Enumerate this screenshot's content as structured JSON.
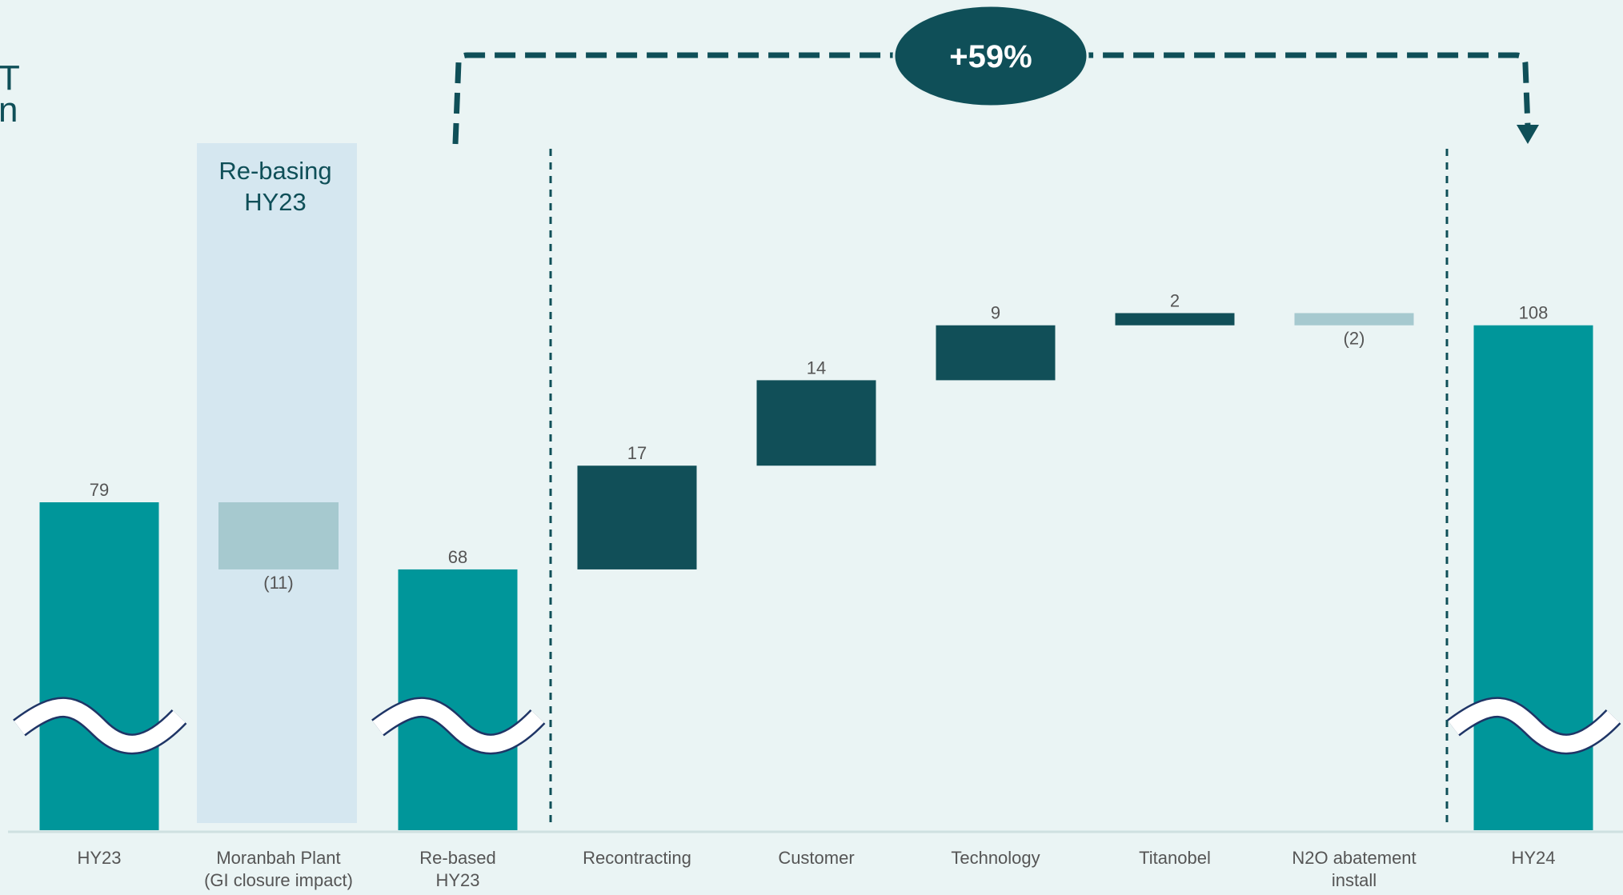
{
  "colors": {
    "background": "#eaf4f4",
    "total_bar": "#00969a",
    "increase_bar": "#114f58",
    "decrease_bar": "#a6c9cf",
    "rebasing_panel": "#d5e7f0",
    "dark_teal": "#0f4f58",
    "label_text": "#555555",
    "category_text": "#555555",
    "axis_break_outline": "#1f3566"
  },
  "side_heading_fragment": [
    "T",
    "n"
  ],
  "growth_callout": {
    "label": "+59%"
  },
  "rebasing_panel": {
    "label_line1": "Re-basing",
    "label_line2": "HY23"
  },
  "chart_data": {
    "type": "bar",
    "subtype": "waterfall",
    "categories": [
      [
        "HY23"
      ],
      [
        "Moranbah Plant",
        "(GI closure impact)"
      ],
      [
        "Re-based",
        "HY23"
      ],
      [
        "Recontracting"
      ],
      [
        "Customer"
      ],
      [
        "Technology"
      ],
      [
        "Titanobel"
      ],
      [
        "N2O abatement",
        "install"
      ],
      [
        "HY24"
      ]
    ],
    "values": [
      79,
      -11,
      68,
      17,
      14,
      9,
      2,
      -2,
      108
    ],
    "value_labels": [
      "79",
      "(11)",
      "68",
      "17",
      "14",
      "9",
      "2",
      "(2)",
      "108"
    ],
    "kinds": [
      "total",
      "decrease",
      "total",
      "increase",
      "increase",
      "increase",
      "increase",
      "decrease",
      "total"
    ],
    "axis_break_on": [
      "HY23",
      "Re-based HY23",
      "HY24"
    ],
    "title": "",
    "xlabel": "",
    "ylabel": "",
    "grid": false,
    "legend": "none"
  }
}
